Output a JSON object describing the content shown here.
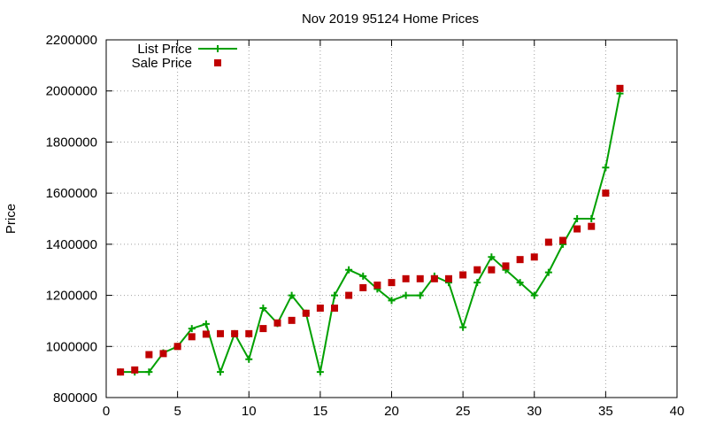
{
  "chart_data": {
    "type": "line",
    "title": "Nov 2019 95124 Home Prices",
    "xlabel": "",
    "ylabel": "Price",
    "xlim": [
      0,
      40
    ],
    "ylim": [
      800000,
      2200000
    ],
    "x_ticks": [
      0,
      5,
      10,
      15,
      20,
      25,
      30,
      35,
      40
    ],
    "y_ticks": [
      800000,
      1000000,
      1200000,
      1400000,
      1600000,
      1800000,
      2000000,
      2200000
    ],
    "grid": true,
    "legend_position": "top-left",
    "series": [
      {
        "name": "List Price",
        "style": "line-with-plus-markers",
        "color": "#00a000",
        "x": [
          1,
          2,
          3,
          4,
          5,
          6,
          7,
          8,
          9,
          10,
          11,
          12,
          13,
          14,
          15,
          16,
          17,
          18,
          19,
          20,
          21,
          22,
          23,
          24,
          25,
          26,
          27,
          28,
          29,
          30,
          31,
          32,
          33,
          34,
          35,
          36
        ],
        "values": [
          900000,
          900000,
          900000,
          975000,
          1000000,
          1070000,
          1088000,
          900000,
          1050000,
          950000,
          1150000,
          1090000,
          1200000,
          1130000,
          900000,
          1200000,
          1300000,
          1275000,
          1225000,
          1180000,
          1200000,
          1200000,
          1275000,
          1250000,
          1075000,
          1250000,
          1350000,
          1300000,
          1250000,
          1200000,
          1290000,
          1400000,
          1500000,
          1500000,
          1700000,
          1990000
        ]
      },
      {
        "name": "Sale Price",
        "style": "square-markers",
        "color": "#c00000",
        "x": [
          1,
          2,
          3,
          4,
          5,
          6,
          7,
          8,
          9,
          10,
          11,
          12,
          13,
          14,
          15,
          16,
          17,
          18,
          19,
          20,
          21,
          22,
          23,
          24,
          25,
          26,
          27,
          28,
          29,
          30,
          31,
          32,
          33,
          34,
          35,
          36
        ],
        "values": [
          900000,
          908000,
          968000,
          972000,
          1000000,
          1038000,
          1048000,
          1050000,
          1050000,
          1050000,
          1070000,
          1092000,
          1102000,
          1130000,
          1150000,
          1150000,
          1200000,
          1230000,
          1240000,
          1250000,
          1265000,
          1265000,
          1265000,
          1265000,
          1280000,
          1300000,
          1300000,
          1315000,
          1340000,
          1350000,
          1408000,
          1415000,
          1460000,
          1470000,
          1600000,
          2010000
        ]
      }
    ]
  }
}
